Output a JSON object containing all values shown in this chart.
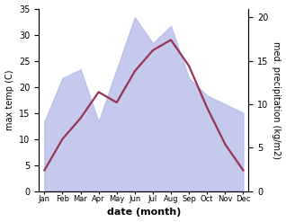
{
  "months": [
    "Jan",
    "Feb",
    "Mar",
    "Apr",
    "May",
    "Jun",
    "Jul",
    "Aug",
    "Sep",
    "Oct",
    "Nov",
    "Dec"
  ],
  "max_temp_C": [
    4,
    10,
    14,
    19,
    17,
    23,
    27,
    29,
    24,
    16,
    9,
    4
  ],
  "precipitation_mm": [
    8,
    13,
    14,
    8,
    14,
    20,
    17,
    19,
    13,
    11,
    10,
    9
  ],
  "temp_ylim": [
    0,
    35
  ],
  "precip_ylim": [
    0,
    21
  ],
  "temp_yticks": [
    0,
    5,
    10,
    15,
    20,
    25,
    30,
    35
  ],
  "precip_yticks": [
    0,
    5,
    10,
    15,
    20
  ],
  "fill_color": "#b0b8e8",
  "fill_alpha": 0.75,
  "line_color": "#993355",
  "line_width": 1.6,
  "xlabel": "date (month)",
  "ylabel_left": "max temp (C)",
  "ylabel_right": "med. precipitation (kg/m2)",
  "background_color": "#ffffff"
}
